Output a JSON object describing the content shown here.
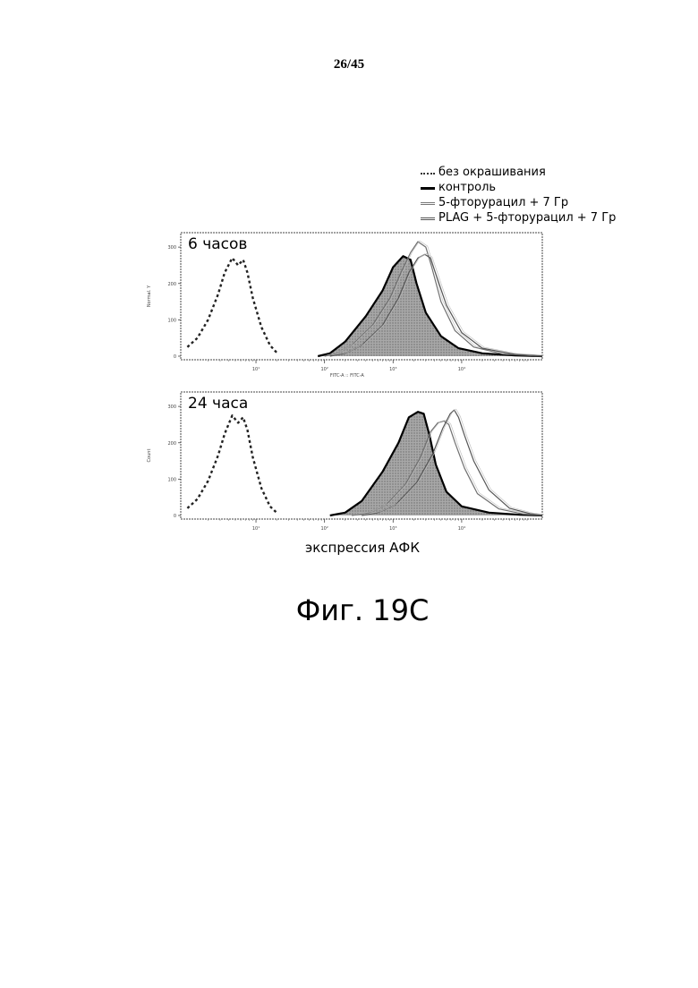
{
  "page_number": "26/45",
  "figure_title": "Фиг. 19C",
  "colors": {
    "control": "#000000",
    "fu_7gy": "#6f6f6f",
    "plag_fu_7gy": "#555555",
    "unstained": "#222222",
    "fill": "#9a9a9a"
  },
  "legend": {
    "items": [
      {
        "label": "без окрашивания",
        "icon": "dotted-line"
      },
      {
        "label": "контроль",
        "icon": "thick-line"
      },
      {
        "label": "5-фторурацил + 7 Гр",
        "icon": "double-line"
      },
      {
        "label": "PLAG + 5-фторурацил + 7 Гр",
        "icon": "double-line"
      }
    ]
  },
  "chart_data": [
    {
      "type": "area",
      "title": "6 часов",
      "xlabel": "экспрессия АФК",
      "xscale": "log",
      "xlim": [
        0.8,
        150000
      ],
      "ylim": [
        0,
        320
      ],
      "yticks": [
        0,
        100,
        200,
        300
      ],
      "ytick_labels": [
        "0",
        "100",
        "200",
        "300"
      ],
      "xtick_labels": [
        "10¹",
        "10²",
        "10³",
        "10⁴"
      ],
      "ylabel_small": "Normal. Y",
      "xlabel_small": "FITC-A :: FITC-A",
      "series": [
        {
          "name": "без окрашивания",
          "style": "dotted",
          "x": [
            1,
            1.4,
            2,
            2.8,
            3.5,
            4.5,
            5.5,
            6.5,
            7.5,
            9,
            12,
            16,
            20
          ],
          "y": [
            25,
            50,
            100,
            170,
            230,
            270,
            250,
            265,
            230,
            160,
            80,
            30,
            10
          ]
        },
        {
          "name": "контроль",
          "style": "thick",
          "filled": true,
          "x": [
            80,
            120,
            200,
            400,
            700,
            1000,
            1400,
            1800,
            2200,
            3000,
            5000,
            9000,
            20000,
            60000,
            150000
          ],
          "y": [
            0,
            8,
            40,
            110,
            180,
            245,
            275,
            265,
            200,
            120,
            55,
            22,
            8,
            2,
            0
          ]
        },
        {
          "name": "5-фторурацил + 7 Гр",
          "style": "double",
          "x": [
            100,
            150,
            250,
            500,
            900,
            1300,
            1800,
            2300,
            3000,
            3600,
            5000,
            8000,
            15000,
            40000,
            150000
          ],
          "y": [
            0,
            8,
            30,
            85,
            160,
            230,
            285,
            315,
            300,
            250,
            150,
            70,
            25,
            6,
            0
          ]
        },
        {
          "name": "PLAG + 5-фторурацил + 7 Гр",
          "style": "double",
          "x": [
            120,
            200,
            350,
            700,
            1200,
            1700,
            2300,
            2900,
            3500,
            4300,
            6000,
            10000,
            20000,
            60000,
            150000
          ],
          "y": [
            0,
            8,
            30,
            85,
            160,
            230,
            270,
            280,
            270,
            220,
            140,
            65,
            22,
            5,
            0
          ]
        }
      ]
    },
    {
      "type": "area",
      "title": "24 часа",
      "xlabel": "экспрессия АФК",
      "xscale": "log",
      "xlim": [
        0.8,
        150000
      ],
      "ylim": [
        0,
        320
      ],
      "yticks": [
        0,
        100,
        200,
        300
      ],
      "ytick_labels": [
        "0",
        "100",
        "200",
        "300"
      ],
      "xtick_labels": [
        "10¹",
        "10²",
        "10³",
        "10⁴"
      ],
      "ylabel_small": "Count",
      "xlabel_small": "",
      "series": [
        {
          "name": "без окрашивания",
          "style": "dotted",
          "x": [
            1,
            1.4,
            2,
            2.8,
            3.5,
            4.5,
            5.5,
            6.5,
            7.5,
            9,
            12,
            16,
            20
          ],
          "y": [
            20,
            45,
            95,
            165,
            225,
            275,
            255,
            270,
            235,
            160,
            75,
            25,
            8
          ]
        },
        {
          "name": "контроль",
          "style": "thick",
          "filled": true,
          "x": [
            120,
            200,
            350,
            700,
            1200,
            1700,
            2300,
            2800,
            3400,
            4200,
            6000,
            10000,
            25000,
            70000,
            150000
          ],
          "y": [
            0,
            8,
            40,
            120,
            200,
            270,
            285,
            280,
            220,
            140,
            65,
            25,
            8,
            2,
            0
          ]
        },
        {
          "name": "5-фторурацил + 7 Гр",
          "style": "double",
          "x": [
            250,
            450,
            800,
            1500,
            2500,
            3500,
            4500,
            5500,
            6500,
            8000,
            11000,
            17000,
            35000,
            80000,
            150000
          ],
          "y": [
            0,
            8,
            30,
            85,
            160,
            230,
            255,
            260,
            250,
            200,
            130,
            60,
            18,
            4,
            0
          ]
        },
        {
          "name": "PLAG + 5-фторурацил + 7 Гр",
          "style": "double",
          "x": [
            350,
            600,
            1100,
            2200,
            3800,
            5300,
            6800,
            7800,
            9000,
            11000,
            15000,
            25000,
            50000,
            100000,
            150000
          ],
          "y": [
            0,
            8,
            30,
            90,
            170,
            240,
            280,
            290,
            270,
            220,
            150,
            70,
            20,
            5,
            0
          ]
        }
      ]
    }
  ]
}
